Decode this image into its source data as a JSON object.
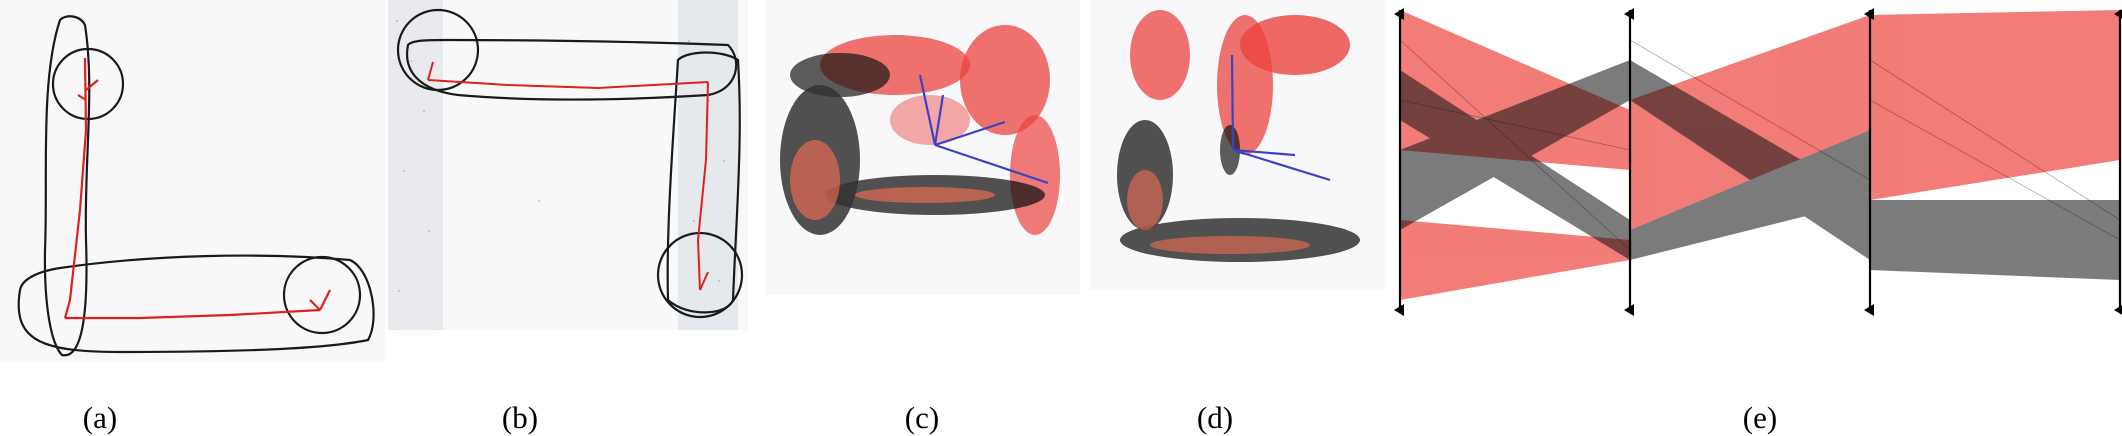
{
  "captions": {
    "a": "(a)",
    "b": "(b)",
    "c": "(c)",
    "d": "(d)",
    "e": "(e)"
  },
  "colors": {
    "outline": "#1a1a1a",
    "skeleton": "#e0201c",
    "cluster_black": "#111111",
    "cluster_red": "#e8241e",
    "axes_blue": "#3b43c4",
    "panel_bg": "#f8f8fb"
  }
}
